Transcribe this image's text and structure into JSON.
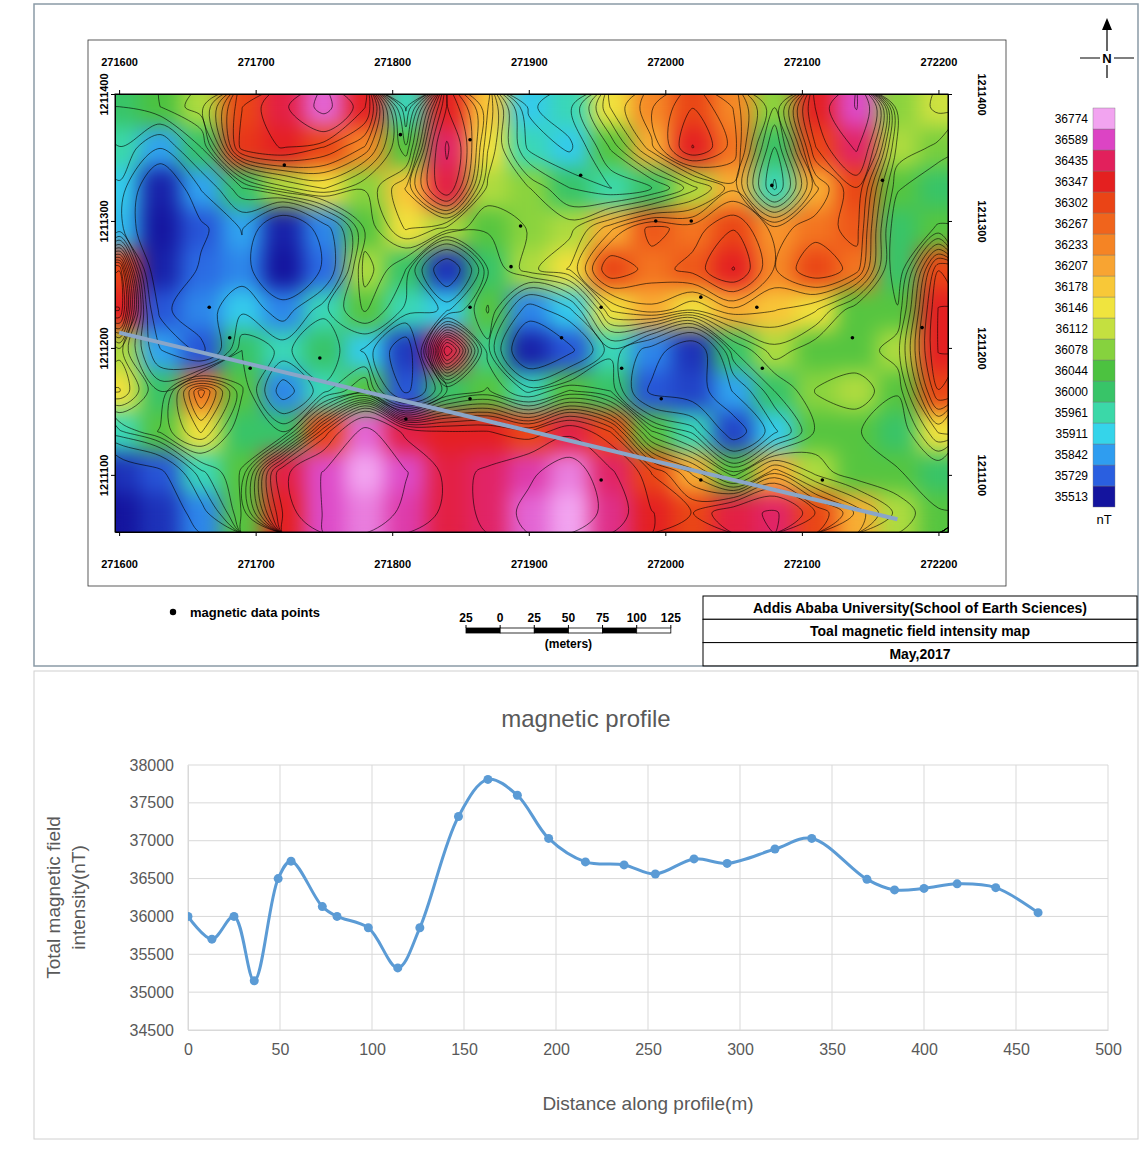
{
  "chart_data": [
    {
      "type": "contour",
      "title": "Toal magnetic field intensity map",
      "institution": "Addis Ababa University(School of Earth Sciences)",
      "date": "May,2017",
      "north": "N",
      "xlim": [
        271597,
        272207
      ],
      "ylim": [
        1211055,
        1211400
      ],
      "xticks": [
        271600,
        271700,
        271800,
        271900,
        272000,
        272100,
        272200
      ],
      "yticks": [
        1211100,
        1211200,
        1211300,
        1211400
      ],
      "x": [
        271600,
        271630,
        271660,
        271690,
        271720,
        271750,
        271780,
        271810,
        271840,
        271870,
        271900,
        271930,
        271960,
        271990,
        272020,
        272050,
        272080,
        272110,
        272140,
        272170,
        272200
      ],
      "y": [
        1211390,
        1211358,
        1211326,
        1211294,
        1211262,
        1211230,
        1211198,
        1211166,
        1211134,
        1211102,
        1211070
      ],
      "z": [
        [
          36000,
          36044,
          36100,
          36300,
          36400,
          36650,
          36350,
          35950,
          36350,
          36180,
          35900,
          35950,
          36150,
          36230,
          36300,
          36230,
          36080,
          36350,
          36600,
          36080,
          36120
        ],
        [
          35960,
          35850,
          36000,
          36320,
          36350,
          36300,
          36230,
          36050,
          36450,
          36150,
          35950,
          35900,
          36050,
          36200,
          36350,
          36250,
          36000,
          36300,
          36450,
          36100,
          36070
        ],
        [
          35900,
          35550,
          35850,
          36000,
          36100,
          36150,
          36080,
          36180,
          36400,
          36100,
          36080,
          36000,
          35960,
          36000,
          36100,
          36200,
          35950,
          36200,
          36300,
          36050,
          36000
        ],
        [
          35880,
          35520,
          35700,
          35850,
          35550,
          35800,
          36050,
          36150,
          36100,
          36050,
          36080,
          36100,
          36200,
          36280,
          36250,
          36300,
          36220,
          36250,
          36280,
          36000,
          36050
        ],
        [
          36300,
          35550,
          35750,
          35800,
          35513,
          35750,
          36100,
          36000,
          35600,
          36000,
          36100,
          36150,
          36300,
          36250,
          36280,
          36350,
          36230,
          36300,
          36250,
          36000,
          36300
        ],
        [
          36350,
          35700,
          35800,
          35900,
          35800,
          35950,
          36050,
          35950,
          35900,
          36050,
          35800,
          35900,
          36150,
          36200,
          36150,
          36200,
          36180,
          36150,
          36050,
          36050,
          36350
        ],
        [
          36100,
          35850,
          35700,
          36000,
          35950,
          36000,
          35900,
          35620,
          36400,
          35980,
          35550,
          35700,
          35950,
          35800,
          35600,
          36000,
          36100,
          36050,
          36050,
          36100,
          36350
        ],
        [
          36150,
          36000,
          36250,
          36050,
          35800,
          35950,
          36050,
          35700,
          36000,
          36050,
          35950,
          36050,
          36000,
          35700,
          35650,
          35850,
          36000,
          36080,
          36100,
          36050,
          36300
        ],
        [
          35950,
          36050,
          36150,
          36000,
          36000,
          36300,
          36650,
          36400,
          36350,
          36350,
          36300,
          36400,
          36300,
          36050,
          35950,
          35650,
          35900,
          36050,
          36050,
          36000,
          36150
        ],
        [
          35600,
          35700,
          35950,
          36050,
          36400,
          36600,
          36774,
          36600,
          36400,
          36450,
          36550,
          36700,
          36450,
          36300,
          36200,
          36050,
          36200,
          36100,
          36050,
          36050,
          36000
        ],
        [
          35513,
          35600,
          35800,
          36050,
          36350,
          36600,
          36700,
          36550,
          36400,
          36450,
          36650,
          36774,
          36500,
          36350,
          36300,
          36400,
          36450,
          36300,
          36200,
          36100,
          36050
        ]
      ],
      "zticks": [
        35513,
        35729,
        35842,
        35911,
        35961,
        36000,
        36044,
        36078,
        36112,
        36146,
        36178,
        36207,
        36233,
        36267,
        36302,
        36347,
        36435,
        36589,
        36774
      ],
      "colors": [
        "#14149e",
        "#2a5fe0",
        "#2f9df0",
        "#35d4ea",
        "#3bd8a8",
        "#38c468",
        "#4cc240",
        "#86d23e",
        "#c4e040",
        "#f0e43e",
        "#f8c838",
        "#f8a432",
        "#f58424",
        "#f0641c",
        "#ea4416",
        "#e42020",
        "#e2205c",
        "#dc44c4",
        "#f2a4f0"
      ],
      "zlabel": "nT",
      "points": {
        "name": "magnetic data points",
        "x": [
          271806,
          271857,
          271721,
          271938,
          271894,
          271993,
          272019,
          272078,
          272159,
          271887,
          271857,
          271953,
          272026,
          272067,
          271666,
          271681,
          271696,
          271747,
          271810,
          271857,
          271924,
          271968,
          271997,
          272071,
          272137,
          272188,
          271953,
          272026,
          272115
        ],
        "y": [
          1211368,
          1211364,
          1211344,
          1211336,
          1211296,
          1211300,
          1211300,
          1211328,
          1211332,
          1211264,
          1211232,
          1211232,
          1211240,
          1211232,
          1211232,
          1211208,
          1211184,
          1211192,
          1211144,
          1211160,
          1211208,
          1211184,
          1211160,
          1211184,
          1211208,
          1211216,
          1211096,
          1211096,
          1211096
        ]
      },
      "profile_line": {
        "x": [
          271600,
          272170
        ],
        "y": [
          1211212,
          1211065
        ]
      },
      "scale_bar": {
        "ticks": [
          {
            "value": -25,
            "label": "25"
          },
          0,
          25,
          50,
          75,
          100,
          125
        ],
        "label": "(meters)"
      }
    },
    {
      "type": "line",
      "title": "magnetic profile",
      "xlabel": "Distance along profile(m)",
      "ylabel": "Total magnetic field intensity(nT)",
      "x": [
        0,
        13,
        25,
        36,
        49,
        56,
        73,
        81,
        98,
        114,
        126,
        147,
        163,
        179,
        196,
        216,
        237,
        254,
        275,
        293,
        319,
        339,
        369,
        384,
        400,
        418,
        439,
        462
      ],
      "values": [
        36000,
        35700,
        36000,
        35150,
        36500,
        36730,
        36130,
        36000,
        35850,
        35320,
        35850,
        37320,
        37810,
        37600,
        37030,
        36720,
        36680,
        36560,
        36760,
        36700,
        36890,
        37030,
        36490,
        36350,
        36370,
        36430,
        36380,
        36050
      ],
      "color": "#5b9bd5",
      "marker": "circle",
      "xlim": [
        0,
        500
      ],
      "ylim": [
        34500,
        38000
      ],
      "xticks": [
        0,
        50,
        100,
        150,
        200,
        250,
        300,
        350,
        400,
        450,
        500
      ],
      "yticks": [
        34500,
        35000,
        35500,
        36000,
        36500,
        37000,
        37500,
        38000
      ],
      "grid": true
    }
  ]
}
